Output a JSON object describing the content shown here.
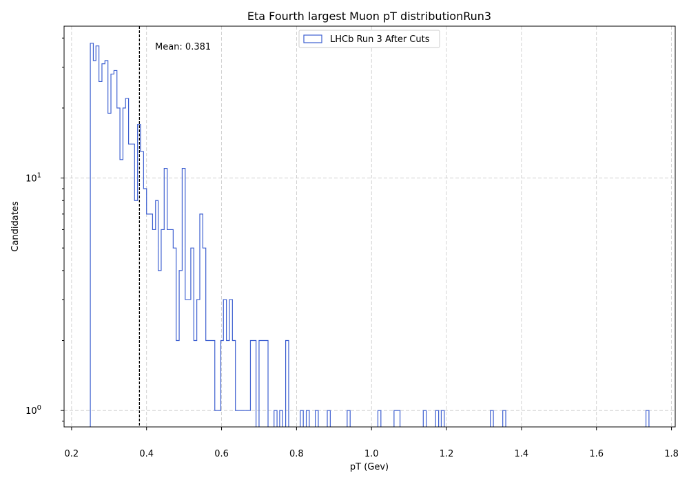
{
  "chart_data": {
    "type": "histogram-step",
    "title": "Eta Fourth largest Muon pT distributionRun3",
    "xlabel": "pT (Gev)",
    "ylabel": "Candidates",
    "xlim": [
      0.18,
      1.81
    ],
    "ylim": [
      0.85,
      45
    ],
    "yscale": "log",
    "grid": true,
    "legend_position": "top-center",
    "x_ticks": [
      "0.2",
      "0.4",
      "0.6",
      "0.8",
      "1.0",
      "1.2",
      "1.4",
      "1.6",
      "1.8"
    ],
    "x_tick_values": [
      0.2,
      0.4,
      0.6,
      0.8,
      1.0,
      1.2,
      1.4,
      1.6,
      1.8
    ],
    "y_ticks": [
      {
        "value": 1,
        "base": "10",
        "exp": "0"
      },
      {
        "value": 10,
        "base": "10",
        "exp": "1"
      }
    ],
    "mean": {
      "value": 0.381,
      "label": "Mean: 0.381"
    },
    "series": [
      {
        "name": "LHCb Run 3 After Cuts",
        "color": "#3d5fd0",
        "bins": [
          [
            0.25,
            0.258,
            38
          ],
          [
            0.258,
            0.265,
            32
          ],
          [
            0.265,
            0.273,
            37
          ],
          [
            0.273,
            0.281,
            26
          ],
          [
            0.281,
            0.289,
            31
          ],
          [
            0.289,
            0.297,
            32
          ],
          [
            0.297,
            0.305,
            19
          ],
          [
            0.305,
            0.313,
            28
          ],
          [
            0.313,
            0.321,
            29
          ],
          [
            0.321,
            0.329,
            20
          ],
          [
            0.329,
            0.337,
            12
          ],
          [
            0.337,
            0.344,
            20
          ],
          [
            0.344,
            0.352,
            22
          ],
          [
            0.352,
            0.36,
            14
          ],
          [
            0.36,
            0.368,
            14
          ],
          [
            0.368,
            0.376,
            8
          ],
          [
            0.376,
            0.384,
            17
          ],
          [
            0.384,
            0.392,
            13
          ],
          [
            0.392,
            0.4,
            9
          ],
          [
            0.4,
            0.408,
            7
          ],
          [
            0.408,
            0.416,
            7
          ],
          [
            0.416,
            0.424,
            6
          ],
          [
            0.424,
            0.431,
            8
          ],
          [
            0.431,
            0.439,
            4
          ],
          [
            0.439,
            0.447,
            6
          ],
          [
            0.447,
            0.455,
            11
          ],
          [
            0.455,
            0.463,
            6
          ],
          [
            0.463,
            0.471,
            6
          ],
          [
            0.471,
            0.479,
            5
          ],
          [
            0.479,
            0.487,
            2
          ],
          [
            0.487,
            0.495,
            4
          ],
          [
            0.495,
            0.503,
            11
          ],
          [
            0.503,
            0.511,
            3
          ],
          [
            0.511,
            0.518,
            3
          ],
          [
            0.518,
            0.526,
            5
          ],
          [
            0.526,
            0.534,
            2
          ],
          [
            0.534,
            0.542,
            3
          ],
          [
            0.542,
            0.55,
            7
          ],
          [
            0.55,
            0.558,
            5
          ],
          [
            0.558,
            0.566,
            2
          ],
          [
            0.566,
            0.574,
            2
          ],
          [
            0.574,
            0.582,
            2
          ],
          [
            0.582,
            0.59,
            1
          ],
          [
            0.59,
            0.598,
            1
          ],
          [
            0.598,
            0.605,
            2
          ],
          [
            0.605,
            0.613,
            3
          ],
          [
            0.613,
            0.621,
            2
          ],
          [
            0.621,
            0.629,
            3
          ],
          [
            0.629,
            0.637,
            2
          ],
          [
            0.637,
            0.645,
            1
          ],
          [
            0.645,
            0.653,
            1
          ],
          [
            0.653,
            0.661,
            1
          ],
          [
            0.661,
            0.669,
            1
          ],
          [
            0.669,
            0.677,
            1
          ],
          [
            0.677,
            0.685,
            2
          ],
          [
            0.685,
            0.692,
            2
          ],
          [
            0.7,
            0.708,
            2
          ],
          [
            0.708,
            0.716,
            2
          ],
          [
            0.716,
            0.724,
            2
          ],
          [
            0.74,
            0.748,
            1
          ],
          [
            0.755,
            0.763,
            1
          ],
          [
            0.771,
            0.779,
            2
          ],
          [
            0.81,
            0.818,
            1
          ],
          [
            0.826,
            0.834,
            1
          ],
          [
            0.85,
            0.858,
            1
          ],
          [
            0.882,
            0.89,
            1
          ],
          [
            0.935,
            0.943,
            1
          ],
          [
            1.017,
            1.025,
            1
          ],
          [
            1.06,
            1.068,
            1
          ],
          [
            1.068,
            1.076,
            1
          ],
          [
            1.138,
            1.146,
            1
          ],
          [
            1.171,
            1.179,
            1
          ],
          [
            1.186,
            1.194,
            1
          ],
          [
            1.317,
            1.325,
            1
          ],
          [
            1.35,
            1.358,
            1
          ],
          [
            1.732,
            1.74,
            1
          ]
        ]
      }
    ]
  }
}
